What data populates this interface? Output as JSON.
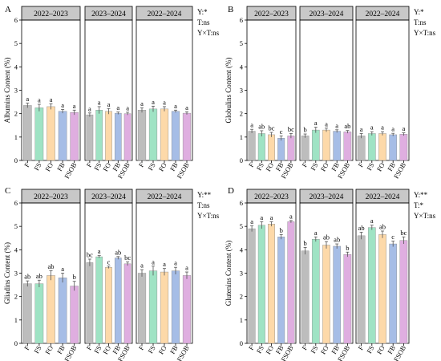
{
  "colors": {
    "F": "#bdbdbd",
    "FS": "#9fe3c4",
    "FO": "#fdd9a9",
    "FB": "#a6bde6",
    "FSOB": "#dfaee0",
    "strip": "#c8c8c8",
    "error_bar": "#555555"
  },
  "chart_data": [
    {
      "type": "bar",
      "panel_label": "A",
      "ylabel": "Albumins Content (%)",
      "ylim": [
        0,
        6
      ],
      "yticks": [
        0,
        1,
        2,
        3,
        4,
        5,
        6
      ],
      "categories": [
        "F",
        "FS",
        "FO",
        "FB",
        "FSOB"
      ],
      "stats": [
        "Y:*",
        "T:ns",
        "Y×T:ns"
      ],
      "facets": [
        {
          "title": "2022–2023",
          "values": [
            2.35,
            2.25,
            2.3,
            2.1,
            2.05
          ],
          "errors": [
            0.1,
            0.15,
            0.12,
            0.08,
            0.1
          ],
          "letters": [
            "a",
            "a",
            "a",
            "a",
            "a"
          ]
        },
        {
          "title": "2023–2024",
          "values": [
            1.95,
            2.15,
            2.1,
            2.02,
            2.0
          ],
          "errors": [
            0.08,
            0.15,
            0.12,
            0.05,
            0.06
          ],
          "letters": [
            "a",
            "a",
            "a",
            "a",
            "a"
          ]
        },
        {
          "title": "2022–2024",
          "values": [
            2.15,
            2.2,
            2.2,
            2.1,
            2.02
          ],
          "errors": [
            0.1,
            0.12,
            0.1,
            0.05,
            0.06
          ],
          "letters": [
            "a",
            "a",
            "a",
            "a",
            "a"
          ]
        }
      ]
    },
    {
      "type": "bar",
      "panel_label": "B",
      "ylabel": "Globulins Content (%)",
      "ylim": [
        0,
        6
      ],
      "yticks": [
        0,
        1,
        2,
        3,
        4,
        5,
        6
      ],
      "categories": [
        "F",
        "FS",
        "FO",
        "FB",
        "FSOB"
      ],
      "stats": [
        "Y:*",
        "T:ns",
        "Y×T:ns"
      ],
      "facets": [
        {
          "title": "2022–2023",
          "values": [
            1.25,
            1.15,
            1.1,
            0.95,
            1.05
          ],
          "errors": [
            0.08,
            0.12,
            0.1,
            0.1,
            0.1
          ],
          "letters": [
            "a",
            "ab",
            "bc",
            "c",
            "bc"
          ]
        },
        {
          "title": "2023–2024",
          "values": [
            1.05,
            1.3,
            1.3,
            1.25,
            1.22
          ],
          "errors": [
            0.08,
            0.12,
            0.08,
            0.06,
            0.06
          ],
          "letters": [
            "b",
            "a",
            "a",
            "a",
            "ab"
          ]
        },
        {
          "title": "2022–2024",
          "values": [
            1.05,
            1.15,
            1.15,
            1.1,
            1.12
          ],
          "errors": [
            0.1,
            0.08,
            0.08,
            0.06,
            0.06
          ],
          "letters": [
            "a",
            "a",
            "a",
            "a",
            "a"
          ]
        }
      ]
    },
    {
      "type": "bar",
      "panel_label": "C",
      "ylabel": "Gliadins Content (%)",
      "ylim": [
        0,
        6
      ],
      "yticks": [
        0,
        1,
        2,
        3,
        4,
        5,
        6
      ],
      "categories": [
        "F",
        "FS",
        "FO",
        "FB",
        "FSOB"
      ],
      "stats": [
        "Y:**",
        "T:ns",
        "Y×T:ns"
      ],
      "facets": [
        {
          "title": "2022–2023",
          "values": [
            2.55,
            2.55,
            2.9,
            2.8,
            2.45
          ],
          "errors": [
            0.12,
            0.15,
            0.2,
            0.2,
            0.2
          ],
          "letters": [
            "ab",
            "ab",
            "ab",
            "a",
            "b"
          ]
        },
        {
          "title": "2023–2024",
          "values": [
            3.45,
            3.7,
            3.25,
            3.65,
            3.4
          ],
          "errors": [
            0.15,
            0.05,
            0.05,
            0.06,
            0.08
          ],
          "letters": [
            "bc",
            "a",
            "c",
            "ab",
            "bc"
          ]
        },
        {
          "title": "2022–2024",
          "values": [
            3.0,
            3.1,
            3.05,
            3.1,
            2.9
          ],
          "errors": [
            0.15,
            0.2,
            0.15,
            0.15,
            0.15
          ],
          "letters": [
            "a",
            "a",
            "a",
            "a",
            "a"
          ]
        }
      ]
    },
    {
      "type": "bar",
      "panel_label": "D",
      "ylabel": "Glutenins Content (%)",
      "ylim": [
        0,
        6
      ],
      "yticks": [
        0,
        1,
        2,
        3,
        4,
        5,
        6
      ],
      "categories": [
        "F",
        "FS",
        "FO",
        "FB",
        "FSOB"
      ],
      "stats": [
        "Y:**",
        "T:*",
        "Y×T:ns"
      ],
      "facets": [
        {
          "title": "2022–2023",
          "values": [
            4.9,
            5.05,
            5.1,
            4.55,
            5.2
          ],
          "errors": [
            0.12,
            0.15,
            0.1,
            0.1,
            0.05
          ],
          "letters": [
            "a",
            "a",
            "a",
            "b",
            "a"
          ]
        },
        {
          "title": "2023–2024",
          "values": [
            3.95,
            4.45,
            4.2,
            4.15,
            3.8
          ],
          "errors": [
            0.15,
            0.1,
            0.15,
            0.1,
            0.1
          ],
          "letters": [
            "b",
            "a",
            "ab",
            "ab",
            "b"
          ]
        },
        {
          "title": "2022–2024",
          "values": [
            4.6,
            4.95,
            4.65,
            4.25,
            4.4
          ],
          "errors": [
            0.15,
            0.1,
            0.15,
            0.12,
            0.15
          ],
          "letters": [
            "ab",
            "a",
            "ab",
            "c",
            "bc"
          ]
        }
      ]
    }
  ]
}
